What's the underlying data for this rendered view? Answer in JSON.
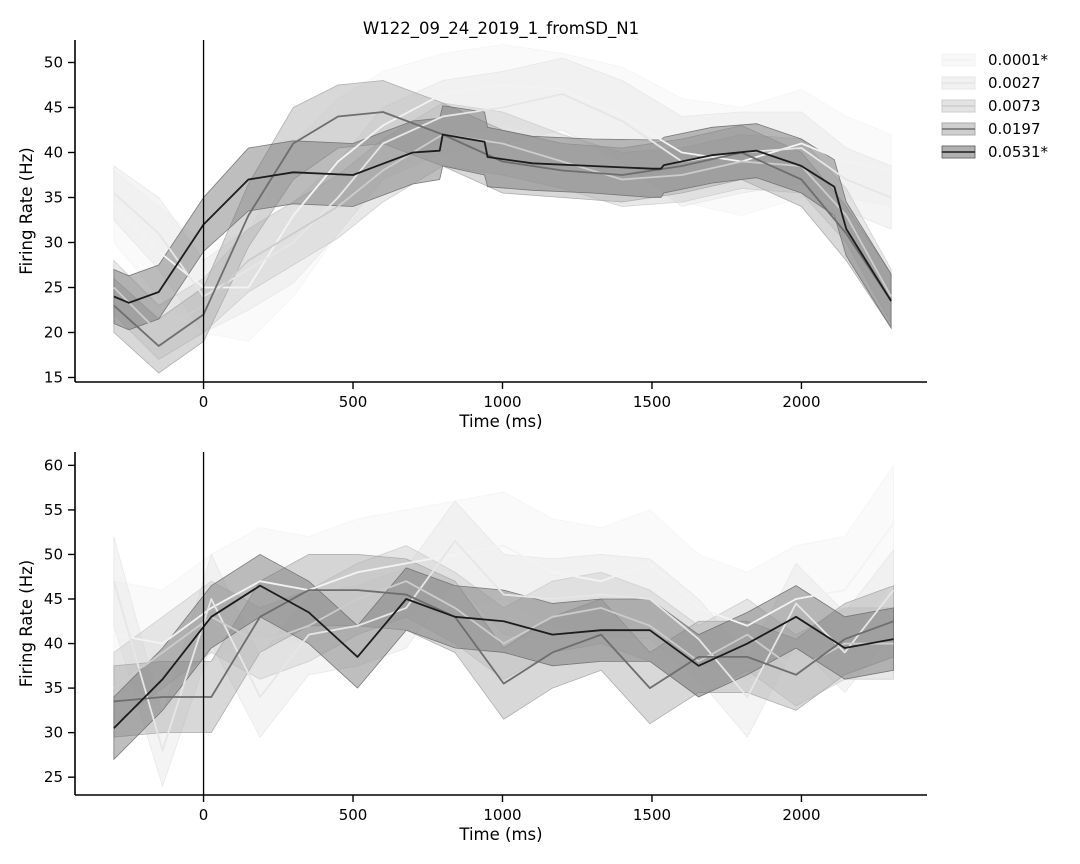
{
  "chart_data": [
    {
      "type": "line",
      "title": "W122_09_24_2019_1_fromSD_N1",
      "xlabel": "Time (ms)",
      "ylabel": "Firing Rate (Hz)",
      "xlim": [
        -430,
        2420
      ],
      "ylim": [
        14.5,
        52.5
      ],
      "xticks": [
        0,
        500,
        1000,
        1500,
        2000
      ],
      "yticks": [
        15,
        20,
        25,
        30,
        35,
        40,
        45,
        50
      ],
      "vline_x": 0,
      "grid": false,
      "band_style": "shaded confidence band around each line",
      "legend": {
        "placement": "upper-right, outside plot",
        "entries": [
          {
            "label": "0.0001*",
            "line_color": "#f3f3f3",
            "band_color": "#f3f3f3"
          },
          {
            "label": "0.0027",
            "line_color": "#e6e6e6",
            "band_color": "#e6e6e6"
          },
          {
            "label": "0.0073",
            "line_color": "#cccccc",
            "band_color": "#cccccc"
          },
          {
            "label": "0.0197",
            "line_color": "#6e6e6e",
            "band_color": "#a8a8a8"
          },
          {
            "label": "0.0531*",
            "line_color": "#1c1c1c",
            "band_color": "#6f6f6f"
          }
        ]
      },
      "series": [
        {
          "name": "0.0001*",
          "color": "#f3f3f3",
          "x": [
            -300,
            -150,
            0,
            150,
            300,
            450,
            600,
            800,
            1000,
            1200,
            1400,
            1600,
            1800,
            2000,
            2150,
            2300
          ],
          "y": [
            34,
            29,
            25,
            25,
            33,
            39,
            43,
            46.5,
            47.5,
            47,
            44,
            40,
            39,
            41,
            39,
            38
          ],
          "lo": [
            30,
            24,
            20,
            19,
            24,
            31,
            37,
            41.5,
            43,
            42,
            38.5,
            34.5,
            33,
            35,
            35,
            34
          ],
          "hi": [
            38,
            34,
            30,
            31,
            41,
            46,
            49,
            51,
            52,
            51,
            49.5,
            46,
            45,
            47,
            44,
            42
          ]
        },
        {
          "name": "0.0027",
          "color": "#e6e6e6",
          "x": [
            -300,
            -150,
            0,
            150,
            300,
            450,
            600,
            800,
            1000,
            1200,
            1400,
            1600,
            1800,
            2000,
            2150,
            2300
          ],
          "y": [
            35.5,
            31,
            24,
            27,
            30,
            35,
            41,
            44,
            45,
            46.5,
            43.5,
            39,
            40,
            40.5,
            37,
            35
          ],
          "lo": [
            32.5,
            27,
            20,
            22.5,
            25.5,
            31,
            37,
            40,
            41,
            42.5,
            39,
            34,
            35.5,
            36.5,
            33.5,
            31.5
          ],
          "hi": [
            38.5,
            35,
            28,
            31.5,
            34.5,
            39,
            45,
            48,
            49,
            50.5,
            48,
            44,
            44.5,
            44.5,
            40.5,
            38.5
          ]
        },
        {
          "name": "0.0073",
          "color": "#cccccc",
          "x": [
            -300,
            -150,
            0,
            150,
            300,
            450,
            600,
            800,
            1000,
            1200,
            1400,
            1600,
            1800,
            2000,
            2150,
            2300
          ],
          "y": [
            25,
            20,
            23,
            28,
            31,
            34,
            38,
            42,
            41,
            39,
            37,
            37.5,
            39,
            38.5,
            33,
            24
          ],
          "lo": [
            22,
            17,
            20,
            24.5,
            27.5,
            30.5,
            34.5,
            38.5,
            37.5,
            36,
            34,
            34.5,
            36,
            35.5,
            30,
            21
          ],
          "hi": [
            28,
            23,
            26,
            31.5,
            34.5,
            37.5,
            41.5,
            45.5,
            44.5,
            42,
            40,
            40.5,
            42,
            41.5,
            36,
            27
          ]
        },
        {
          "name": "0.0197",
          "color": "#6e6e6e",
          "x": [
            -300,
            -150,
            0,
            150,
            300,
            450,
            600,
            800,
            1000,
            1200,
            1400,
            1600,
            1800,
            2000,
            2150,
            2300
          ],
          "y": [
            23,
            18.5,
            22,
            33,
            41,
            44,
            44.5,
            42,
            39,
            38,
            37.5,
            38.5,
            40,
            37,
            31,
            23.5
          ],
          "lo": [
            20,
            15.5,
            19,
            29.5,
            37,
            40.5,
            41,
            38.5,
            35.5,
            35,
            34.5,
            35.5,
            37,
            34,
            28,
            20.5
          ],
          "hi": [
            26,
            21.5,
            25,
            36.5,
            45,
            47.5,
            48,
            45.5,
            42.5,
            41,
            40.5,
            41.5,
            43,
            40,
            34,
            26.5
          ]
        },
        {
          "name": "0.0531*",
          "color": "#1c1c1c",
          "x": [
            -300,
            -250,
            -150,
            0,
            150,
            300,
            500,
            700,
            790,
            800,
            940,
            950,
            1100,
            1300,
            1500,
            1530,
            1540,
            1700,
            1850,
            2000,
            2110,
            2150,
            2300
          ],
          "y": [
            24,
            23.3,
            24.5,
            32,
            37,
            37.8,
            37.5,
            40,
            40.2,
            42,
            41.2,
            39.5,
            38.8,
            38.5,
            38.2,
            38.2,
            38.6,
            39.7,
            40.2,
            38.5,
            36.2,
            31.5,
            23.5
          ],
          "lo": [
            21,
            20.3,
            21.5,
            29,
            33.5,
            34.3,
            34,
            36.5,
            37,
            38.5,
            37.5,
            36.2,
            35.8,
            35.5,
            35,
            35,
            35.5,
            36.6,
            37.2,
            35.5,
            33,
            28.5,
            20.5
          ],
          "hi": [
            27,
            26.3,
            27.5,
            35,
            40.5,
            41.3,
            41,
            43.5,
            43.8,
            45.2,
            44.5,
            42.8,
            41.8,
            41.5,
            41.4,
            41.4,
            41.7,
            42.8,
            43.2,
            41.5,
            39.2,
            34.5,
            26.5
          ]
        }
      ]
    },
    {
      "type": "line",
      "title": "",
      "xlabel": "Time (ms)",
      "ylabel": "Firing Rate (Hz)",
      "xlim": [
        -430,
        2420
      ],
      "ylim": [
        23,
        61.5
      ],
      "xticks": [
        0,
        500,
        1000,
        1500,
        2000
      ],
      "yticks": [
        25,
        30,
        35,
        40,
        45,
        50,
        55,
        60
      ],
      "vline_x": 0,
      "grid": false,
      "band_style": "shaded confidence band around each line",
      "series": [
        {
          "name": "0.0001*",
          "color": "#f3f3f3",
          "x": [
            -300,
            -137,
            26,
            189,
            352,
            515,
            678,
            841,
            1004,
            1167,
            1330,
            1493,
            1656,
            1819,
            1982,
            2145,
            2308
          ],
          "y": [
            41,
            40,
            44,
            47,
            46,
            48,
            49,
            50,
            51,
            48,
            47,
            49,
            44,
            42,
            45,
            46,
            53.5
          ],
          "lo": [
            35,
            34,
            38,
            41,
            40,
            42,
            43,
            44,
            45,
            42,
            41,
            43,
            38,
            36,
            39,
            40,
            47
          ],
          "hi": [
            47,
            46,
            50,
            53,
            52,
            54,
            55,
            56,
            57,
            54,
            53,
            55,
            50,
            48,
            51,
            52,
            60
          ]
        },
        {
          "name": "0.0027",
          "color": "#e6e6e6",
          "x": [
            -300,
            -137,
            26,
            189,
            352,
            515,
            678,
            841,
            1004,
            1167,
            1330,
            1493,
            1656,
            1819,
            1982,
            2145,
            2308
          ],
          "y": [
            47,
            28,
            45,
            34,
            41,
            42,
            44,
            51.5,
            45.5,
            45,
            45.5,
            45,
            40.5,
            34,
            44.5,
            39,
            46
          ],
          "lo": [
            42,
            24,
            40,
            29.5,
            36.5,
            37.5,
            39.5,
            47,
            41,
            40.5,
            41,
            40.5,
            36,
            29.5,
            40,
            34.5,
            41.5
          ],
          "hi": [
            52,
            32,
            50,
            38.5,
            45.5,
            46.5,
            48.5,
            56,
            50,
            49.5,
            50,
            49.5,
            45,
            38.5,
            49,
            43.5,
            50.5
          ]
        },
        {
          "name": "0.0073",
          "color": "#cccccc",
          "x": [
            -300,
            -137,
            26,
            189,
            352,
            515,
            678,
            841,
            1004,
            1167,
            1330,
            1493,
            1656,
            1819,
            1982,
            2145,
            2308
          ],
          "y": [
            35,
            39,
            43,
            40,
            42,
            45,
            47,
            44,
            40,
            43,
            44,
            42,
            38,
            41,
            37,
            40,
            40
          ],
          "lo": [
            31,
            35,
            39,
            36,
            38,
            41,
            43,
            40,
            36,
            39,
            40,
            38,
            34,
            37,
            33,
            36,
            36
          ],
          "hi": [
            39,
            43,
            47,
            44,
            46,
            49,
            51,
            48,
            44,
            47,
            48,
            46,
            42,
            45,
            41,
            44,
            44
          ]
        },
        {
          "name": "0.0197",
          "color": "#6e6e6e",
          "x": [
            -300,
            -137,
            26,
            189,
            352,
            515,
            678,
            841,
            1004,
            1167,
            1330,
            1493,
            1656,
            1819,
            1982,
            2145,
            2308
          ],
          "y": [
            33.5,
            34,
            34,
            43,
            46,
            46,
            45.5,
            43,
            35.5,
            39,
            41,
            35,
            38.5,
            38.5,
            36.5,
            40.5,
            42.5
          ],
          "lo": [
            29.5,
            30,
            30,
            39,
            42,
            42,
            41.5,
            39,
            31.5,
            35,
            37,
            31,
            34.5,
            34.5,
            32.5,
            36.5,
            38.5
          ],
          "hi": [
            37.5,
            38,
            38,
            47,
            50,
            50,
            49.5,
            47,
            39.5,
            43,
            45,
            39,
            42.5,
            42.5,
            40.5,
            44.5,
            46.5
          ]
        },
        {
          "name": "0.0531*",
          "color": "#1c1c1c",
          "x": [
            -300,
            -137,
            26,
            189,
            352,
            515,
            678,
            841,
            1004,
            1167,
            1330,
            1493,
            1656,
            1819,
            1982,
            2145,
            2308
          ],
          "y": [
            30.5,
            36,
            43,
            46.5,
            43.5,
            38.5,
            45,
            43,
            42.5,
            41,
            41.5,
            41.5,
            37.5,
            40,
            43,
            39.5,
            40.5
          ],
          "lo": [
            27,
            32.5,
            39.5,
            43,
            40,
            35,
            41.5,
            39.5,
            39,
            37.5,
            38,
            38,
            34,
            36.5,
            39.5,
            36,
            37
          ],
          "hi": [
            34,
            39.5,
            46.5,
            50,
            47,
            42,
            48.5,
            46.5,
            46,
            44.5,
            45,
            45,
            41,
            43.5,
            46.5,
            43,
            44
          ]
        }
      ]
    }
  ]
}
